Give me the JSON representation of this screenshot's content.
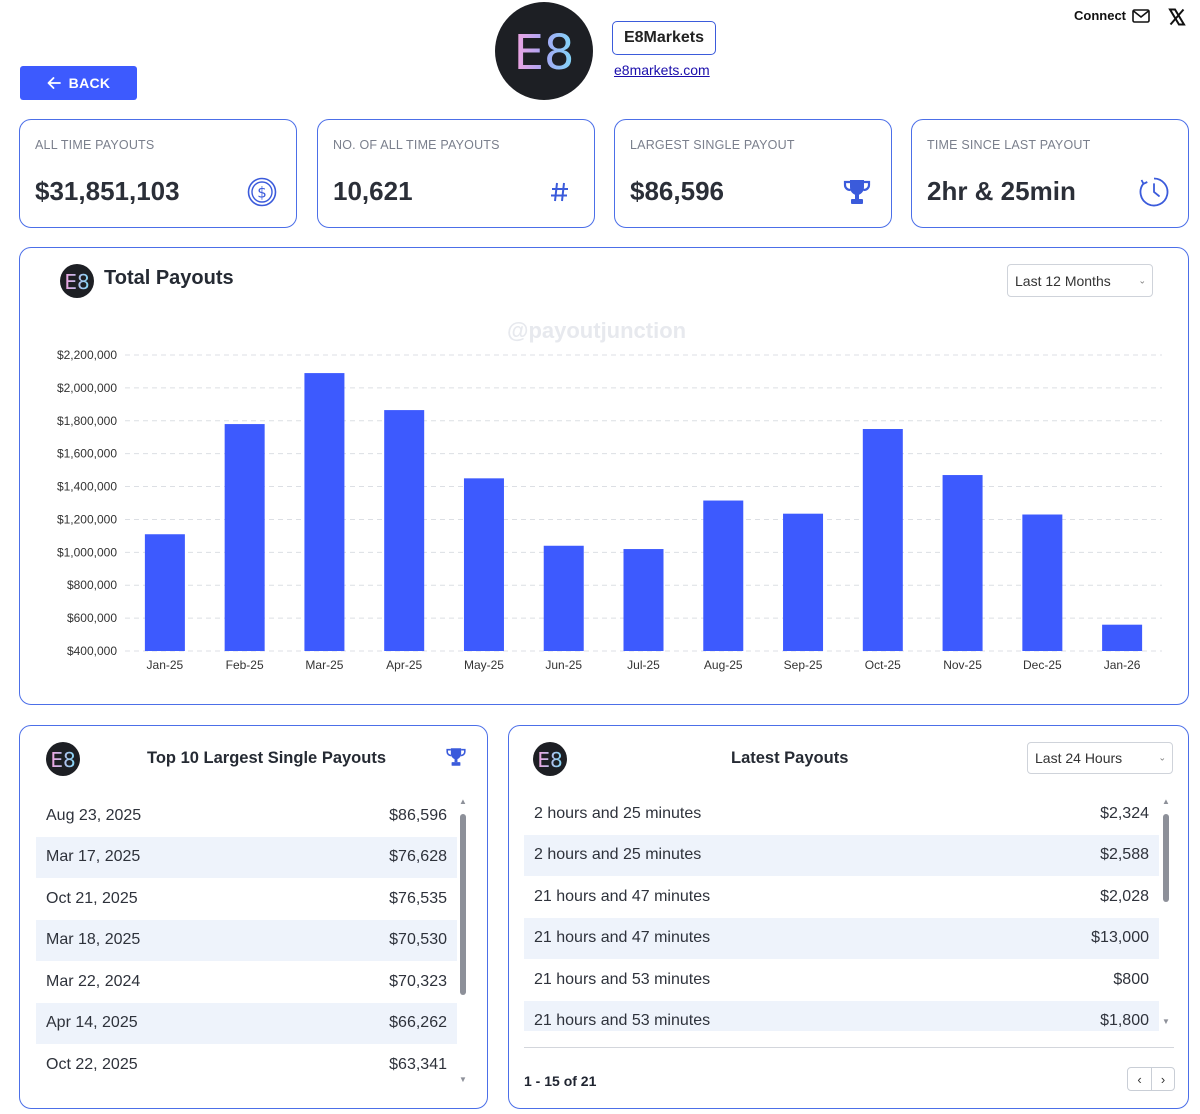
{
  "header": {
    "logo_text": "E8",
    "brand_name": "E8Markets",
    "brand_link": "e8markets.com",
    "connect_label": "Connect",
    "back_label": "BACK"
  },
  "stats": [
    {
      "label": "ALL TIME PAYOUTS",
      "value": "$31,851,103",
      "icon": "dollar-circle-icon"
    },
    {
      "label": "NO. OF ALL TIME PAYOUTS",
      "value": "10,621",
      "icon": "hash-icon"
    },
    {
      "label": "LARGEST SINGLE PAYOUT",
      "value": "$86,596",
      "icon": "trophy-icon"
    },
    {
      "label": "TIME SINCE LAST PAYOUT",
      "value": "2hr & 25min",
      "icon": "clock-icon"
    }
  ],
  "chart_panel": {
    "title": "Total Payouts",
    "range_select": "Last 12 Months",
    "watermark": "@payoutjunction"
  },
  "chart_data": {
    "type": "bar",
    "title": "Total Payouts",
    "categories": [
      "Jan-25",
      "Feb-25",
      "Mar-25",
      "Apr-25",
      "May-25",
      "Jun-25",
      "Jul-25",
      "Aug-25",
      "Sep-25",
      "Oct-25",
      "Nov-25",
      "Dec-25",
      "Jan-26"
    ],
    "values": [
      1110000,
      1780000,
      2090000,
      1865000,
      1450000,
      1040000,
      1020000,
      1315000,
      1235000,
      1750000,
      1470000,
      1230000,
      560000
    ],
    "ylim": [
      400000,
      2200000
    ],
    "yticks": [
      400000,
      600000,
      800000,
      1000000,
      1200000,
      1400000,
      1600000,
      1800000,
      2000000,
      2200000
    ],
    "ytick_labels": [
      "$400,000",
      "$600,000",
      "$800,000",
      "$1,000,000",
      "$1,200,000",
      "$1,400,000",
      "$1,600,000",
      "$1,800,000",
      "$2,000,000",
      "$2,200,000"
    ],
    "xlabel": "",
    "ylabel": "",
    "grid": true,
    "bar_color": "#3d5afe"
  },
  "top_payouts": {
    "title": "Top 10 Largest Single Payouts",
    "rows": [
      {
        "date": "Aug 23, 2025",
        "amount": "$86,596"
      },
      {
        "date": "Mar 17, 2025",
        "amount": "$76,628"
      },
      {
        "date": "Oct 21, 2025",
        "amount": "$76,535"
      },
      {
        "date": "Mar 18, 2025",
        "amount": "$70,530"
      },
      {
        "date": "Mar 22, 2024",
        "amount": "$70,323"
      },
      {
        "date": "Apr 14, 2025",
        "amount": "$66,262"
      },
      {
        "date": "Oct 22, 2025",
        "amount": "$63,341"
      }
    ]
  },
  "latest_payouts": {
    "title": "Latest Payouts",
    "range_select": "Last 24 Hours",
    "rows": [
      {
        "time": "2 hours and 25 minutes",
        "amount": "$2,324"
      },
      {
        "time": "2 hours and 25 minutes",
        "amount": "$2,588"
      },
      {
        "time": "21 hours and 47 minutes",
        "amount": "$2,028"
      },
      {
        "time": "21 hours and 47 minutes",
        "amount": "$13,000"
      },
      {
        "time": "21 hours and 53 minutes",
        "amount": "$800"
      },
      {
        "time": "21 hours and 53 minutes",
        "amount": "$1,800"
      }
    ],
    "pagination": "1 - 15 of 21"
  }
}
